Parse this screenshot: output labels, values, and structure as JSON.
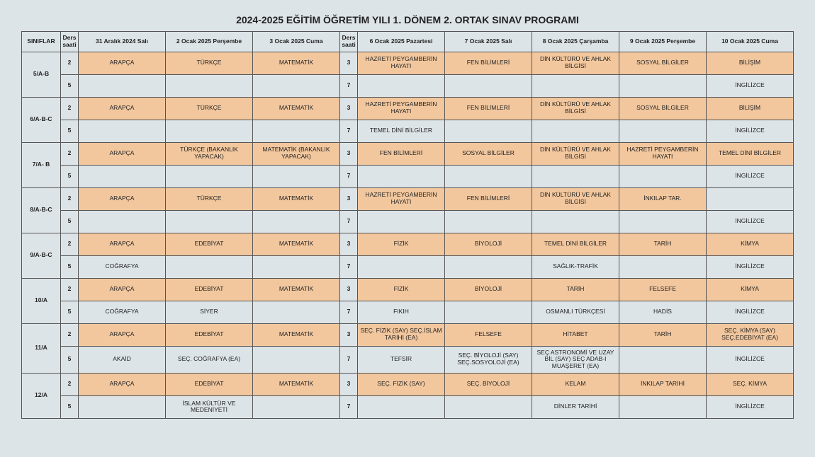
{
  "title": "2024-2025 EĞİTİM ÖĞRETİM YILI  1. DÖNEM  2. ORTAK SINAV PROGRAMI",
  "headers": {
    "class": "SINIFLAR",
    "hour1": "Ders saati",
    "hour2": "Ders saati",
    "d1": "31 Aralık 2024 Salı",
    "d2": "2 Ocak 2025 Perşembe",
    "d3": "3 Ocak 2025 Cuma",
    "d4": "6 Ocak 2025 Pazartesi",
    "d5": "7 Ocak 2025 Salı",
    "d6": "8 Ocak 2025 Çarşamba",
    "d7": "9 Ocak 2025 Perşembe",
    "d8": "10 Ocak 2025 Cuma"
  },
  "rows": [
    {
      "class": "5/A-B",
      "r1": {
        "h1": "2",
        "c1": "ARAPÇA",
        "c2": "TÜRKÇE",
        "c3": "MATEMATİK",
        "h2": "3",
        "c4": "HAZRETİ PEYGAMBERİN HAYATI",
        "c5": "FEN BİLİMLERİ",
        "c6": "DİN KÜLTÜRÜ VE AHLAK BİLGİSİ",
        "c7": "SOSYAL BİLGİLER",
        "c8": "BİLİŞİM",
        "hl": {
          "c1": 1,
          "c2": 1,
          "c3": 1,
          "c4": 1,
          "c5": 1,
          "c6": 1,
          "c7": 1,
          "c8": 1
        }
      },
      "r2": {
        "h1": "5",
        "c1": "",
        "c2": "",
        "c3": "",
        "h2": "7",
        "c4": "",
        "c5": "",
        "c6": "",
        "c7": "",
        "c8": "İNGİLİZCE",
        "hl": {}
      }
    },
    {
      "class": "6/A-B-C",
      "r1": {
        "h1": "2",
        "c1": "ARAPÇA",
        "c2": "TÜRKÇE",
        "c3": "MATEMATİK",
        "h2": "3",
        "c4": "HAZRETİ PEYGAMBERİN HAYATI",
        "c5": "FEN BİLİMLERİ",
        "c6": "DİN KÜLTÜRÜ VE AHLAK BİLGİSİ",
        "c7": "SOSYAL BİLGİLER",
        "c8": "BİLİŞİM",
        "hl": {
          "c1": 1,
          "c2": 1,
          "c3": 1,
          "c4": 1,
          "c5": 1,
          "c6": 1,
          "c7": 1,
          "c8": 1
        }
      },
      "r2": {
        "h1": "5",
        "c1": "",
        "c2": "",
        "c3": "",
        "h2": "7",
        "c4": "TEMEL DİNİ BİLGİLER",
        "c5": "",
        "c6": "",
        "c7": "",
        "c8": "İNGİLİZCE",
        "hl": {}
      }
    },
    {
      "class": "7/A- B",
      "r1": {
        "h1": "2",
        "c1": "ARAPÇA",
        "c2": "TÜRKÇE (BAKANLIK YAPACAK)",
        "c3": "MATEMATİK (BAKANLIK YAPACAK)",
        "h2": "3",
        "c4": "FEN BİLİMLERİ",
        "c5": "SOSYAL BİLGİLER",
        "c6": "DİN KÜLTÜRÜ VE AHLAK BİLGİSİ",
        "c7": "HAZRETİ PEYGAMBERİN HAYATI",
        "c8": "TEMEL DİNİ BİLGİLER",
        "hl": {
          "c1": 1,
          "c2": 1,
          "c3": 1,
          "c4": 1,
          "c5": 1,
          "c6": 1,
          "c7": 1,
          "c8": 1
        }
      },
      "r2": {
        "h1": "5",
        "c1": "",
        "c2": "",
        "c3": "",
        "h2": "7",
        "c4": "",
        "c5": "",
        "c6": "",
        "c7": "",
        "c8": "İNGİLİZCE",
        "hl": {}
      }
    },
    {
      "class": "8/A-B-C",
      "r1": {
        "h1": "2",
        "c1": "ARAPÇA",
        "c2": "TÜRKÇE",
        "c3": "MATEMATİK",
        "h2": "3",
        "c4": "HAZRETİ PEYGAMBERİN HAYATI",
        "c5": "FEN BİLİMLERİ",
        "c6": "DİN KÜLTÜRÜ VE AHLAK BİLGİSİ",
        "c7": "İNKILAP TAR.",
        "c8": "",
        "hl": {
          "c1": 1,
          "c2": 1,
          "c3": 1,
          "c4": 1,
          "c5": 1,
          "c6": 1,
          "c7": 1
        }
      },
      "r2": {
        "h1": "5",
        "c1": "",
        "c2": "",
        "c3": "",
        "h2": "7",
        "c4": "",
        "c5": "",
        "c6": "",
        "c7": "",
        "c8": "İNGİLİZCE",
        "hl": {}
      }
    },
    {
      "class": "9/A-B-C",
      "r1": {
        "h1": "2",
        "c1": "ARAPÇA",
        "c2": "EDEBİYAT",
        "c3": "MATEMATİK",
        "h2": "3",
        "c4": "FİZİK",
        "c5": "BİYOLOJİ",
        "c6": "TEMEL DİNİ BİLGİLER",
        "c7": "TARİH",
        "c8": "KİMYA",
        "hl": {
          "c1": 1,
          "c2": 1,
          "c3": 1,
          "c4": 1,
          "c5": 1,
          "c6": 1,
          "c7": 1,
          "c8": 1
        }
      },
      "r2": {
        "h1": "5",
        "c1": "COĞRAFYA",
        "c2": "",
        "c3": "",
        "h2": "7",
        "c4": "",
        "c5": "",
        "c6": "SAĞLIK-TRAFİK",
        "c7": "",
        "c8": "İNGİLİZCE",
        "hl": {}
      }
    },
    {
      "class": "10/A",
      "r1": {
        "h1": "2",
        "c1": "ARAPÇA",
        "c2": "EDEBİYAT",
        "c3": "MATEMATİK",
        "h2": "3",
        "c4": "FİZİK",
        "c5": "BİYOLOJİ",
        "c6": "TARİH",
        "c7": "FELSEFE",
        "c8": "KİMYA",
        "hl": {
          "c1": 1,
          "c2": 1,
          "c3": 1,
          "c4": 1,
          "c5": 1,
          "c6": 1,
          "c7": 1,
          "c8": 1
        }
      },
      "r2": {
        "h1": "5",
        "c1": "COĞRAFYA",
        "c2": "SİYER",
        "c3": "",
        "h2": "7",
        "c4": "FIKIH",
        "c5": "",
        "c6": "OSMANLI TÜRKÇESİ",
        "c7": "HADİS",
        "c8": "İNGİLİZCE",
        "hl": {}
      }
    },
    {
      "class": "11/A",
      "r1": {
        "h1": "2",
        "c1": "ARAPÇA",
        "c2": "EDEBİYAT",
        "c3": "MATEMATİK",
        "h2": "3",
        "c4": "SEÇ. FİZİK (SAY) SEÇ.İSLAM TARİHİ (EA)",
        "c5": "FELSEFE",
        "c6": "HİTABET",
        "c7": "TARİH",
        "c8": "SEÇ. KİMYA (SAY) SEÇ.EDEBİYAT (EA)",
        "hl": {
          "c1": 1,
          "c2": 1,
          "c3": 1,
          "c4": 1,
          "c5": 1,
          "c6": 1,
          "c7": 1,
          "c8": 1
        }
      },
      "r2": {
        "h1": "5",
        "c1": "AKAİD",
        "c2": "SEÇ. COĞRAFYA (EA)",
        "c3": "",
        "h2": "7",
        "c4": "TEFSİR",
        "c5": "SEÇ. BİYOLOJİ (SAY) SEÇ.SOSYOLOJİ (EA)",
        "c6": "SEÇ ASTRONOMİ VE UZAY BİL (SAY) SEÇ ADAB-I MUAŞERET (EA)",
        "c7": "",
        "c8": "İNGİLİZCE",
        "hl": {}
      }
    },
    {
      "class": "12/A",
      "r1": {
        "h1": "2",
        "c1": "ARAPÇA",
        "c2": "EDEBİYAT",
        "c3": "MATEMATİK",
        "h2": "3",
        "c4": "SEÇ. FİZİK (SAY)",
        "c5": "SEÇ. BİYOLOJİ",
        "c6": "KELAM",
        "c7": "İNKILAP TARİHİ",
        "c8": "SEÇ. KİMYA",
        "hl": {
          "c1": 1,
          "c2": 1,
          "c3": 1,
          "c4": 1,
          "c5": 1,
          "c6": 1,
          "c7": 1,
          "c8": 1
        }
      },
      "r2": {
        "h1": "5",
        "c1": "",
        "c2": "İSLAM KÜLTÜR VE MEDENİYETİ",
        "c3": "",
        "h2": "7",
        "c4": "",
        "c5": "",
        "c6": "DİNLER TARİHİ",
        "c7": "",
        "c8": "İNGİLİZCE",
        "hl": {}
      }
    }
  ],
  "colors": {
    "highlight": "#f2c79e",
    "bg": "#dde4e8",
    "border": "#555555",
    "text": "#222222"
  }
}
